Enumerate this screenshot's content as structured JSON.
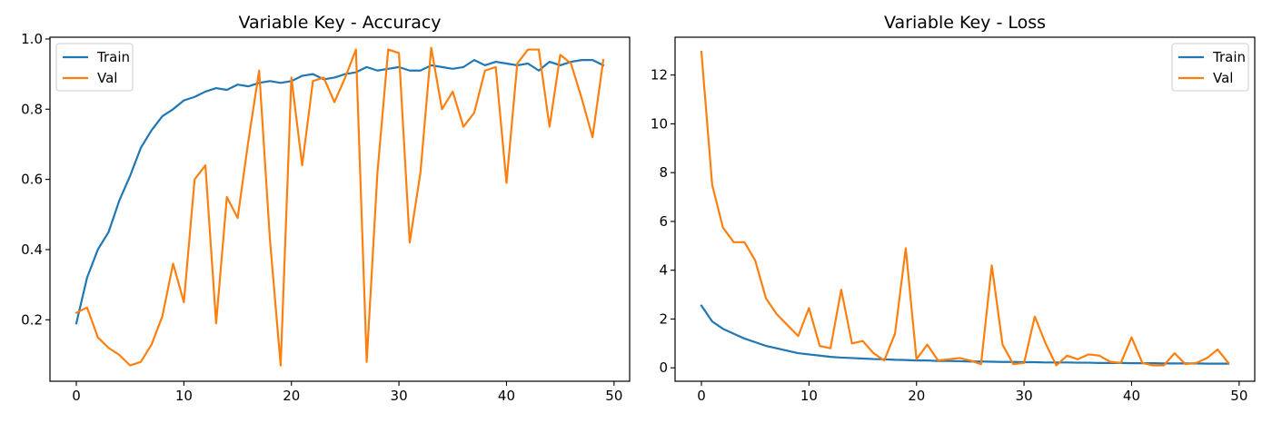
{
  "chart_data": [
    {
      "type": "line",
      "title": "Variable Key - Accuracy",
      "xlabel": "",
      "ylabel": "",
      "xlim": [
        -2.45,
        51.45
      ],
      "ylim": [
        0.025,
        1.005
      ],
      "xticks": [
        0,
        10,
        20,
        30,
        40,
        50
      ],
      "yticks": [
        0.2,
        0.4,
        0.6,
        0.8,
        1.0
      ],
      "ytick_labels": [
        "0.2",
        "0.4",
        "0.6",
        "0.8",
        "1.0"
      ],
      "legend": "upper left",
      "grid": false,
      "x": [
        0,
        1,
        2,
        3,
        4,
        5,
        6,
        7,
        8,
        9,
        10,
        11,
        12,
        13,
        14,
        15,
        16,
        17,
        18,
        19,
        20,
        21,
        22,
        23,
        24,
        25,
        26,
        27,
        28,
        29,
        30,
        31,
        32,
        33,
        34,
        35,
        36,
        37,
        38,
        39,
        40,
        41,
        42,
        43,
        44,
        45,
        46,
        47,
        48,
        49
      ],
      "series": [
        {
          "name": "Train",
          "color": "#1f77b4",
          "values": [
            0.19,
            0.32,
            0.4,
            0.45,
            0.54,
            0.61,
            0.69,
            0.74,
            0.78,
            0.8,
            0.825,
            0.835,
            0.85,
            0.86,
            0.855,
            0.87,
            0.865,
            0.875,
            0.88,
            0.875,
            0.88,
            0.895,
            0.9,
            0.885,
            0.89,
            0.9,
            0.905,
            0.92,
            0.91,
            0.915,
            0.92,
            0.91,
            0.91,
            0.925,
            0.92,
            0.915,
            0.92,
            0.94,
            0.925,
            0.935,
            0.93,
            0.925,
            0.93,
            0.91,
            0.935,
            0.925,
            0.935,
            0.94,
            0.94,
            0.925
          ]
        },
        {
          "name": "Val",
          "color": "#ff7f0e",
          "values": [
            0.22,
            0.235,
            0.15,
            0.12,
            0.1,
            0.07,
            0.08,
            0.13,
            0.21,
            0.36,
            0.25,
            0.6,
            0.64,
            0.19,
            0.55,
            0.49,
            0.71,
            0.91,
            0.43,
            0.07,
            0.89,
            0.64,
            0.88,
            0.89,
            0.82,
            0.89,
            0.97,
            0.08,
            0.62,
            0.97,
            0.96,
            0.42,
            0.62,
            0.975,
            0.8,
            0.85,
            0.75,
            0.79,
            0.91,
            0.92,
            0.59,
            0.93,
            0.97,
            0.97,
            0.75,
            0.955,
            0.93,
            0.83,
            0.72,
            0.94
          ]
        }
      ]
    },
    {
      "type": "line",
      "title": "Variable Key - Loss",
      "xlabel": "",
      "ylabel": "",
      "xlim": [
        -2.45,
        51.45
      ],
      "ylim": [
        -0.55,
        13.55
      ],
      "xticks": [
        0,
        10,
        20,
        30,
        40,
        50
      ],
      "yticks": [
        0,
        2,
        4,
        6,
        8,
        10,
        12
      ],
      "ytick_labels": [
        "0",
        "2",
        "4",
        "6",
        "8",
        "10",
        "12"
      ],
      "legend": "upper right",
      "grid": false,
      "x": [
        0,
        1,
        2,
        3,
        4,
        5,
        6,
        7,
        8,
        9,
        10,
        11,
        12,
        13,
        14,
        15,
        16,
        17,
        18,
        19,
        20,
        21,
        22,
        23,
        24,
        25,
        26,
        27,
        28,
        29,
        30,
        31,
        32,
        33,
        34,
        35,
        36,
        37,
        38,
        39,
        40,
        41,
        42,
        43,
        44,
        45,
        46,
        47,
        48,
        49
      ],
      "series": [
        {
          "name": "Train",
          "color": "#1f77b4",
          "values": [
            2.55,
            1.9,
            1.6,
            1.4,
            1.2,
            1.05,
            0.9,
            0.8,
            0.7,
            0.6,
            0.55,
            0.5,
            0.45,
            0.42,
            0.4,
            0.38,
            0.36,
            0.35,
            0.33,
            0.32,
            0.3,
            0.3,
            0.28,
            0.28,
            0.27,
            0.26,
            0.26,
            0.25,
            0.24,
            0.24,
            0.23,
            0.23,
            0.22,
            0.22,
            0.22,
            0.21,
            0.21,
            0.2,
            0.2,
            0.2,
            0.19,
            0.19,
            0.19,
            0.18,
            0.18,
            0.18,
            0.18,
            0.17,
            0.17,
            0.17
          ]
        },
        {
          "name": "Val",
          "color": "#ff7f0e",
          "values": [
            12.95,
            7.5,
            5.75,
            5.15,
            5.15,
            4.4,
            2.85,
            2.2,
            1.75,
            1.3,
            2.45,
            0.9,
            0.8,
            3.2,
            1.0,
            1.1,
            0.6,
            0.3,
            1.4,
            4.9,
            0.35,
            0.95,
            0.3,
            0.35,
            0.4,
            0.3,
            0.15,
            4.2,
            0.95,
            0.15,
            0.2,
            2.1,
            1.0,
            0.1,
            0.5,
            0.35,
            0.55,
            0.5,
            0.25,
            0.2,
            1.25,
            0.2,
            0.1,
            0.1,
            0.6,
            0.15,
            0.2,
            0.4,
            0.75,
            0.2
          ]
        }
      ]
    }
  ]
}
